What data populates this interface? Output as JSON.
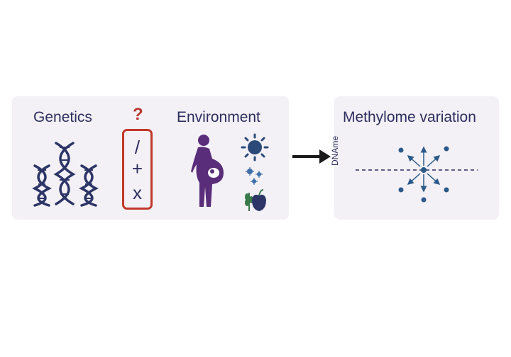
{
  "left_panel": {
    "genetics_label": "Genetics",
    "environment_label": "Environment",
    "question_mark": "?",
    "operators": {
      "divide": "/",
      "plus": "+",
      "times": "x"
    }
  },
  "right_panel": {
    "title": "Methylome variation",
    "axis_label": "DNAme"
  },
  "colors": {
    "panel_bg": "#f3f0f6",
    "text": "#2e2f5e",
    "accent_red": "#c0392b",
    "dna_navy": "#2c3566",
    "pregnant_purple": "#5a2d7a",
    "environment_blue": "#2b4a7a",
    "dot_blue": "#2b5a8a",
    "arrow": "#1a1a1a"
  },
  "icons": [
    "dna-helix-icon",
    "pregnant-woman-icon",
    "sun-icon",
    "virus-icon",
    "apple-icon",
    "wheat-icon"
  ]
}
